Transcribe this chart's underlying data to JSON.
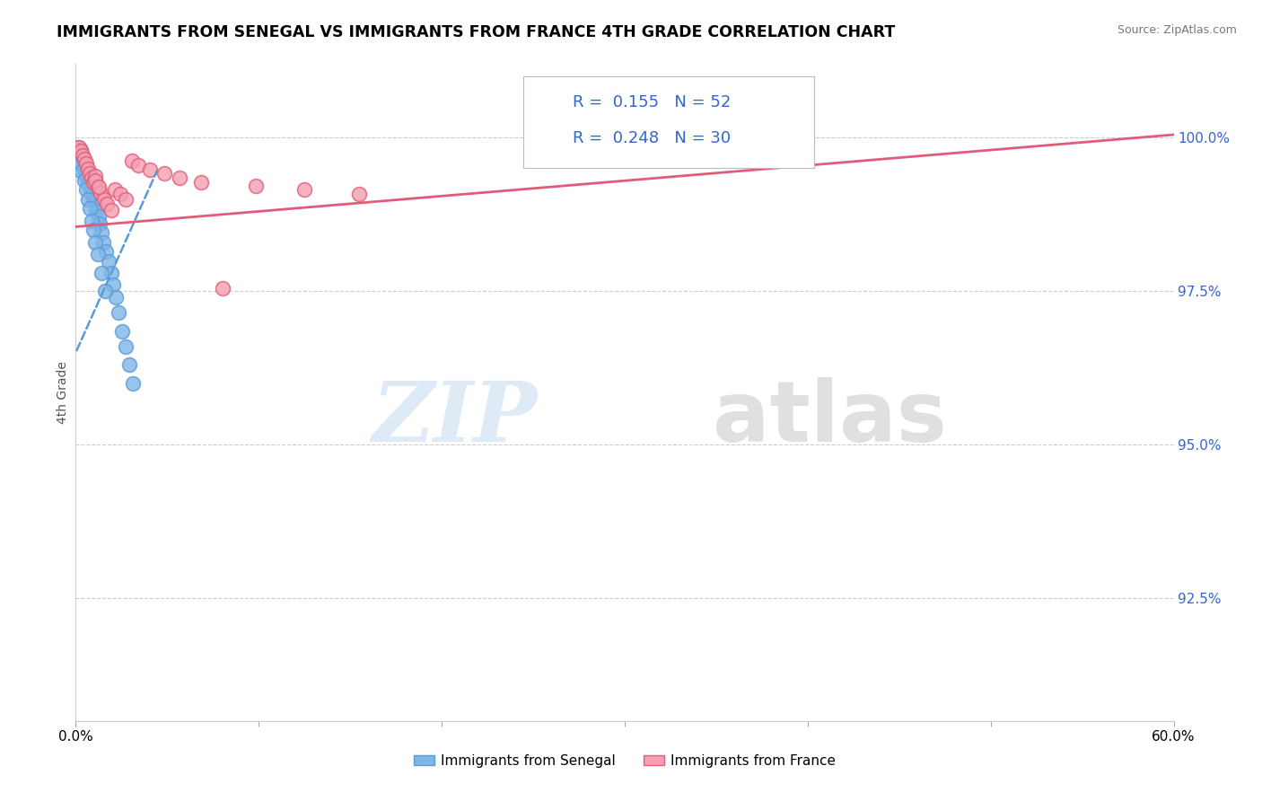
{
  "title": "IMMIGRANTS FROM SENEGAL VS IMMIGRANTS FROM FRANCE 4TH GRADE CORRELATION CHART",
  "ylabel": "4th Grade",
  "source_text": "Source: ZipAtlas.com",
  "xlim": [
    0.0,
    60.0
  ],
  "ylim": [
    90.5,
    101.2
  ],
  "legend_r_senegal": "0.155",
  "legend_n_senegal": "52",
  "legend_r_france": "0.248",
  "legend_n_france": "30",
  "color_senegal": "#7EB6E8",
  "color_france": "#F4A0B0",
  "color_line_senegal": "#5B9BD5",
  "color_line_france": "#E05C7A",
  "background_color": "#FFFFFF",
  "ytick_positions": [
    92.5,
    95.0,
    97.5,
    100.0
  ],
  "ytick_labels": [
    "92.5%",
    "95.0%",
    "97.5%",
    "100.0%"
  ],
  "senegal_x": [
    0.15,
    0.25,
    0.28,
    0.35,
    0.38,
    0.42,
    0.45,
    0.48,
    0.52,
    0.55,
    0.58,
    0.62,
    0.65,
    0.68,
    0.72,
    0.75,
    0.78,
    0.82,
    0.85,
    0.88,
    0.92,
    0.95,
    0.98,
    1.05,
    1.12,
    1.18,
    1.25,
    1.32,
    1.42,
    1.52,
    1.65,
    1.78,
    1.92,
    2.05,
    2.18,
    2.35,
    2.55,
    2.72,
    2.92,
    3.12,
    0.22,
    0.32,
    0.45,
    0.55,
    0.65,
    0.75,
    0.88,
    0.98,
    1.08,
    1.22,
    1.42,
    1.62
  ],
  "senegal_y": [
    99.85,
    99.75,
    99.8,
    99.7,
    99.65,
    99.6,
    99.55,
    99.5,
    99.45,
    99.5,
    99.4,
    99.35,
    99.3,
    99.38,
    99.25,
    99.2,
    99.28,
    99.15,
    99.1,
    99.18,
    99.05,
    99.0,
    99.08,
    98.95,
    98.8,
    98.88,
    98.72,
    98.6,
    98.45,
    98.3,
    98.15,
    97.98,
    97.8,
    97.6,
    97.4,
    97.15,
    96.85,
    96.6,
    96.3,
    96.0,
    99.6,
    99.45,
    99.3,
    99.15,
    99.0,
    98.85,
    98.65,
    98.5,
    98.3,
    98.1,
    97.8,
    97.5
  ],
  "france_x": [
    0.18,
    0.28,
    0.38,
    0.48,
    0.58,
    0.68,
    0.78,
    0.88,
    0.98,
    1.08,
    1.22,
    1.38,
    1.55,
    1.72,
    1.92,
    2.15,
    2.42,
    2.72,
    3.05,
    3.42,
    4.05,
    4.85,
    5.65,
    6.85,
    8.05,
    9.85,
    12.5,
    15.5,
    1.05,
    1.25
  ],
  "france_y": [
    99.85,
    99.78,
    99.72,
    99.65,
    99.58,
    99.5,
    99.42,
    99.35,
    99.28,
    99.38,
    99.2,
    99.1,
    99.0,
    98.92,
    98.82,
    99.15,
    99.08,
    99.0,
    99.62,
    99.55,
    99.48,
    99.42,
    99.35,
    99.28,
    97.55,
    99.22,
    99.15,
    99.08,
    99.3,
    99.2
  ],
  "trendline_senegal_x0": 0.0,
  "trendline_senegal_y0": 96.5,
  "trendline_senegal_x1": 4.5,
  "trendline_senegal_y1": 99.5,
  "trendline_france_x0": 0.0,
  "trendline_france_y0": 98.55,
  "trendline_france_x1": 60.0,
  "trendline_france_y1": 100.05
}
